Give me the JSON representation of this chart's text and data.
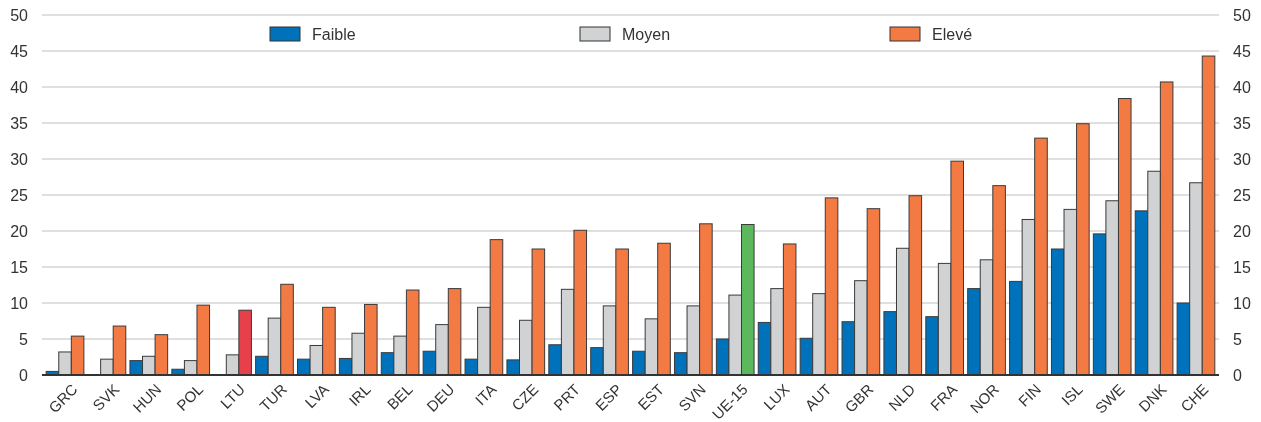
{
  "chart_data": {
    "type": "bar",
    "categories": [
      "GRC",
      "SVK",
      "HUN",
      "POL",
      "LTU",
      "TUR",
      "LVA",
      "IRL",
      "BEL",
      "DEU",
      "ITA",
      "CZE",
      "PRT",
      "ESP",
      "EST",
      "SVN",
      "UE-15",
      "LUX",
      "AUT",
      "GBR",
      "NLD",
      "FRA",
      "NOR",
      "FIN",
      "ISL",
      "SWE",
      "DNK",
      "CHE"
    ],
    "series": [
      {
        "name": "Faible",
        "color": "#0072bc",
        "values": [
          0.5,
          null,
          2.0,
          0.8,
          null,
          2.6,
          2.2,
          2.3,
          3.1,
          3.3,
          2.2,
          2.1,
          4.2,
          3.8,
          3.3,
          3.1,
          5.0,
          7.3,
          5.1,
          7.4,
          8.8,
          8.1,
          12.0,
          13.0,
          17.5,
          19.6,
          22.8,
          10.0
        ]
      },
      {
        "name": "Moyen",
        "color": "#d0d2d3",
        "values": [
          3.2,
          2.2,
          2.6,
          2.0,
          2.8,
          7.9,
          4.1,
          5.8,
          5.4,
          7.0,
          9.4,
          7.6,
          11.9,
          9.6,
          7.8,
          9.6,
          11.1,
          12.0,
          11.3,
          13.1,
          17.6,
          15.5,
          16.0,
          21.6,
          23.0,
          24.2,
          28.3,
          26.7
        ]
      },
      {
        "name": "Elevé",
        "color": "#f47a44",
        "colors": [
          "#f47a44",
          "#f47a44",
          "#f47a44",
          "#f47a44",
          "#e8404a",
          "#f47a44",
          "#f47a44",
          "#f47a44",
          "#f47a44",
          "#f47a44",
          "#f47a44",
          "#f47a44",
          "#f47a44",
          "#f47a44",
          "#f47a44",
          "#f47a44",
          "#5cb85c",
          "#f47a44",
          "#f47a44",
          "#f47a44",
          "#f47a44",
          "#f47a44",
          "#f47a44",
          "#f47a44",
          "#f47a44",
          "#f47a44",
          "#f47a44",
          "#f47a44"
        ],
        "values": [
          5.4,
          6.8,
          5.6,
          9.7,
          9.0,
          12.6,
          9.4,
          9.8,
          11.8,
          12.0,
          18.8,
          17.5,
          20.1,
          17.5,
          18.3,
          21.0,
          20.9,
          18.2,
          24.6,
          23.1,
          24.9,
          29.7,
          26.3,
          32.9,
          34.9,
          38.4,
          40.7,
          44.3
        ]
      }
    ],
    "ylim": [
      0,
      50
    ],
    "yticks": [
      0,
      5,
      10,
      15,
      20,
      25,
      30,
      35,
      40,
      45,
      50
    ],
    "y2lim": [
      0,
      50
    ],
    "y2ticks": [
      0,
      5,
      10,
      15,
      20,
      25,
      30,
      35,
      40,
      45,
      50
    ],
    "grid": "y",
    "legend": "top"
  }
}
